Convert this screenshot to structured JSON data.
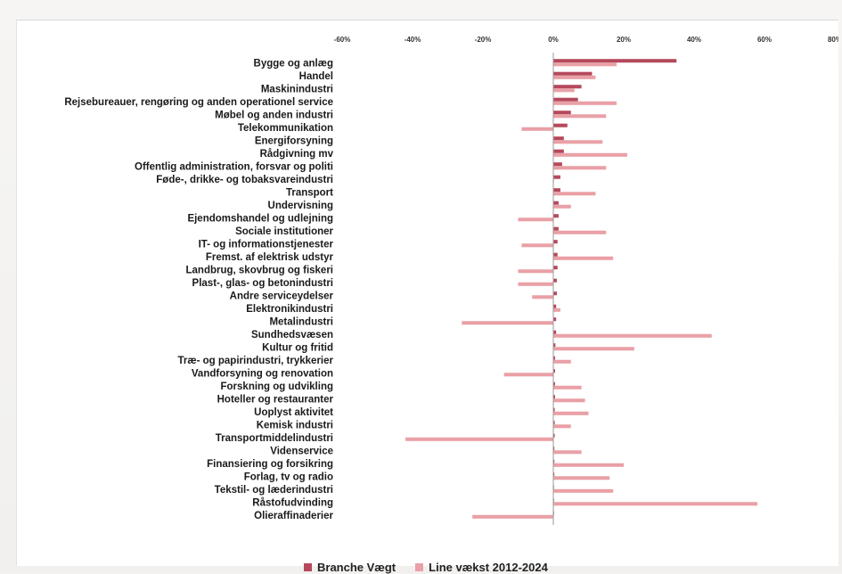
{
  "chart_data": {
    "type": "bar",
    "orientation": "horizontal",
    "title": "",
    "xlabel": "",
    "ylabel": "",
    "xlim": [
      -60,
      80
    ],
    "x_ticks": [
      "-60%",
      "-40%",
      "-20%",
      "0%",
      "20%",
      "40%",
      "60%",
      "80%"
    ],
    "grid": false,
    "legend_position": "bottom",
    "categories": [
      "Bygge og anlæg",
      "Handel",
      "Maskinindustri",
      "Rejsebureauer, rengøring og anden operationel service",
      "Møbel og anden industri",
      "Telekommunikation",
      "Energiforsyning",
      "Rådgivning mv",
      "Offentlig administration, forsvar og politi",
      "Føde-, drikke- og tobaksvareindustri",
      "Transport",
      "Undervisning",
      "Ejendomshandel og udlejning",
      "Sociale institutioner",
      "IT- og informationstjenester",
      "Fremst. af elektrisk udstyr",
      "Landbrug, skovbrug og fiskeri",
      "Plast-, glas- og betonindustri",
      "Andre serviceydelser",
      "Elektronikindustri",
      "Metalindustri",
      "Sundhedsvæsen",
      "Kultur og fritid",
      "Træ- og papirindustri, trykkerier",
      "Vandforsyning og renovation",
      "Forskning og udvikling",
      "Hoteller og restauranter",
      "Uoplyst aktivitet",
      "Kemisk industri",
      "Transportmiddelindustri",
      "Videnservice",
      "Finansiering og forsikring",
      "Forlag, tv og radio",
      "Tekstil- og læderindustri",
      "Råstofudvinding",
      "Olieraffinaderier"
    ],
    "series": [
      {
        "name": "Branche Vægt",
        "color": "#b5495b",
        "values": [
          35,
          11,
          8,
          7,
          5,
          4,
          3,
          3,
          2.5,
          2,
          2,
          1.5,
          1.5,
          1.5,
          1.2,
          1.2,
          1.2,
          1.0,
          1.0,
          0.8,
          0.8,
          0.8,
          0.6,
          0.5,
          0.5,
          0.5,
          0.5,
          0.4,
          0.4,
          0.4,
          0.3,
          0.3,
          0.3,
          0.2,
          0.2,
          0.1
        ]
      },
      {
        "name": "Line vækst 2012-2024",
        "color": "#e9a0a6",
        "values": [
          18,
          12,
          6,
          18,
          15,
          -9,
          14,
          21,
          15,
          0,
          12,
          5,
          -10,
          15,
          -9,
          17,
          -10,
          -10,
          -6,
          2,
          -26,
          45,
          23,
          5,
          -14,
          8,
          9,
          10,
          5,
          -42,
          8,
          20,
          16,
          17,
          58,
          -23
        ]
      }
    ]
  }
}
